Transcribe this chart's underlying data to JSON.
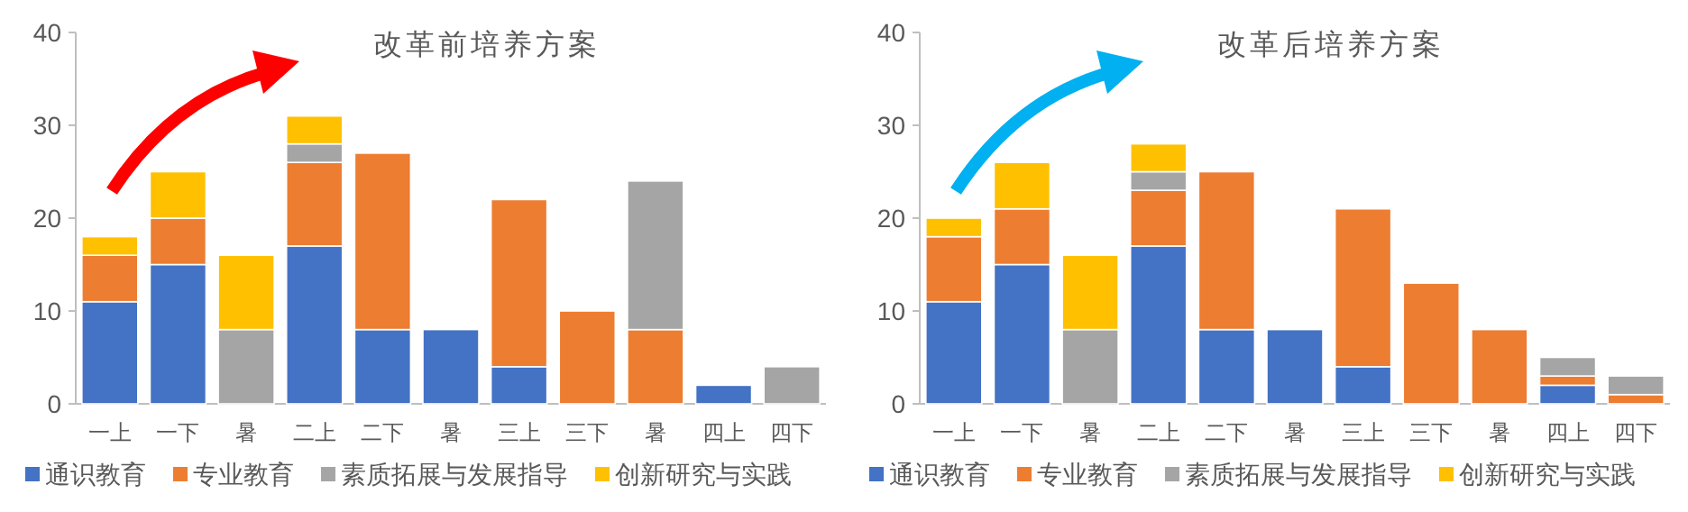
{
  "chart_data": [
    {
      "type": "bar",
      "stacked": true,
      "title": "改革前培养方案",
      "categories": [
        "一上",
        "一下",
        "暑",
        "二上",
        "二下",
        "暑",
        "三上",
        "三下",
        "暑",
        "四上",
        "四下"
      ],
      "ylim": [
        0,
        40
      ],
      "yticks": [
        0,
        10,
        20,
        30,
        40
      ],
      "legend": "bottom",
      "series": [
        {
          "name": "通识教育",
          "color": "#4472c4",
          "values": [
            11,
            15,
            null,
            17,
            8,
            8,
            4,
            null,
            null,
            2,
            null
          ]
        },
        {
          "name": "专业教育",
          "color": "#ed7d31",
          "values": [
            5,
            5,
            null,
            9,
            19,
            null,
            18,
            10,
            8,
            null,
            null
          ]
        },
        {
          "name": "素质拓展与发展指导",
          "color": "#a5a5a5",
          "values": [
            null,
            null,
            8,
            2,
            null,
            null,
            null,
            null,
            16,
            null,
            4
          ]
        },
        {
          "name": "创新研究与实践",
          "color": "#ffc000",
          "values": [
            2,
            5,
            8,
            3,
            null,
            null,
            null,
            null,
            null,
            null,
            null
          ]
        }
      ]
    },
    {
      "type": "bar",
      "stacked": true,
      "title": "改革后培养方案",
      "categories": [
        "一上",
        "一下",
        "暑",
        "二上",
        "二下",
        "暑",
        "三上",
        "三下",
        "暑",
        "四上",
        "四下"
      ],
      "ylim": [
        0,
        40
      ],
      "yticks": [
        0,
        10,
        20,
        30,
        40
      ],
      "legend": "bottom",
      "series": [
        {
          "name": "通识教育",
          "color": "#4472c4",
          "values": [
            11,
            15,
            null,
            17,
            8,
            8,
            4,
            null,
            null,
            2,
            null
          ]
        },
        {
          "name": "专业教育",
          "color": "#ed7d31",
          "values": [
            7,
            6,
            null,
            6,
            17,
            null,
            17,
            13,
            8,
            1,
            1
          ]
        },
        {
          "name": "素质拓展与发展指导",
          "color": "#a5a5a5",
          "values": [
            null,
            null,
            8,
            2,
            null,
            null,
            null,
            null,
            null,
            2,
            2
          ]
        },
        {
          "name": "创新研究与实践",
          "color": "#ffc000",
          "values": [
            2,
            5,
            8,
            3,
            null,
            null,
            null,
            null,
            null,
            null,
            null
          ]
        }
      ]
    }
  ]
}
